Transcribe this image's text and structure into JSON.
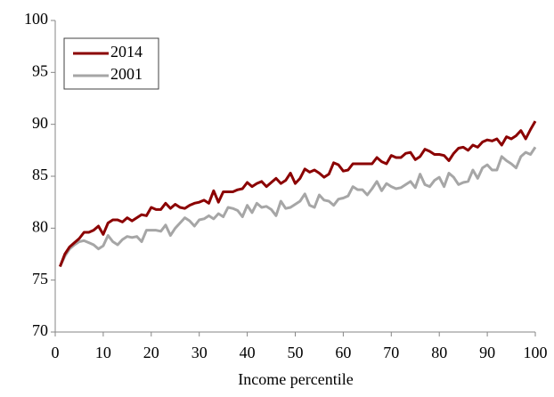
{
  "chart_data": {
    "type": "line",
    "xlabel": "Income percentile",
    "x": [
      1,
      2,
      3,
      4,
      5,
      6,
      7,
      8,
      9,
      10,
      11,
      12,
      13,
      14,
      15,
      16,
      17,
      18,
      19,
      20,
      21,
      22,
      23,
      24,
      25,
      26,
      27,
      28,
      29,
      30,
      31,
      32,
      33,
      34,
      35,
      36,
      37,
      38,
      39,
      40,
      41,
      42,
      43,
      44,
      45,
      46,
      47,
      48,
      49,
      50,
      51,
      52,
      53,
      54,
      55,
      56,
      57,
      58,
      59,
      60,
      61,
      62,
      63,
      64,
      65,
      66,
      67,
      68,
      69,
      70,
      71,
      72,
      73,
      74,
      75,
      76,
      77,
      78,
      79,
      80,
      81,
      82,
      83,
      84,
      85,
      86,
      87,
      88,
      89,
      90,
      91,
      92,
      93,
      94,
      95,
      96,
      97,
      98,
      99,
      100
    ],
    "series": [
      {
        "name": "2014",
        "color": "#8b0000",
        "values": [
          76.3,
          77.5,
          78.2,
          78.6,
          79.0,
          79.6,
          79.6,
          79.8,
          80.2,
          79.4,
          80.5,
          80.8,
          80.8,
          80.6,
          81.0,
          80.7,
          81.0,
          81.3,
          81.2,
          82.0,
          81.8,
          81.8,
          82.4,
          81.9,
          82.3,
          82.0,
          81.9,
          82.2,
          82.4,
          82.5,
          82.7,
          82.4,
          83.6,
          82.5,
          83.5,
          83.5,
          83.5,
          83.7,
          83.8,
          84.4,
          84.0,
          84.3,
          84.5,
          84.0,
          84.4,
          84.8,
          84.3,
          84.6,
          85.3,
          84.3,
          84.8,
          85.7,
          85.4,
          85.6,
          85.3,
          84.9,
          85.2,
          86.3,
          86.1,
          85.5,
          85.6,
          86.2,
          86.2,
          86.2,
          86.2,
          86.2,
          86.8,
          86.4,
          86.2,
          87.0,
          86.8,
          86.8,
          87.2,
          87.3,
          86.6,
          86.9,
          87.6,
          87.4,
          87.1,
          87.1,
          87.0,
          86.5,
          87.2,
          87.7,
          87.8,
          87.5,
          88.0,
          87.8,
          88.3,
          88.5,
          88.4,
          88.6,
          88.0,
          88.8,
          88.6,
          88.9,
          89.4,
          88.6,
          89.5,
          90.3
        ]
      },
      {
        "name": "2001",
        "color": "#a6a6a6",
        "values": [
          76.3,
          77.3,
          78.0,
          78.4,
          78.7,
          78.8,
          78.6,
          78.4,
          78.0,
          78.3,
          79.3,
          78.7,
          78.4,
          78.9,
          79.2,
          79.1,
          79.2,
          78.7,
          79.8,
          79.8,
          79.8,
          79.7,
          80.3,
          79.3,
          80.0,
          80.5,
          81.0,
          80.7,
          80.2,
          80.8,
          80.9,
          81.2,
          80.9,
          81.4,
          81.1,
          82.0,
          81.9,
          81.7,
          81.1,
          82.2,
          81.5,
          82.4,
          82.0,
          82.1,
          81.8,
          81.2,
          82.6,
          81.9,
          82.0,
          82.3,
          82.6,
          83.3,
          82.2,
          82.0,
          83.2,
          82.7,
          82.6,
          82.2,
          82.8,
          82.9,
          83.1,
          84.0,
          83.7,
          83.7,
          83.2,
          83.8,
          84.5,
          83.6,
          84.3,
          84.0,
          83.8,
          83.9,
          84.2,
          84.5,
          83.9,
          85.2,
          84.2,
          84.0,
          84.6,
          84.9,
          84.0,
          85.3,
          84.9,
          84.2,
          84.4,
          84.5,
          85.6,
          84.8,
          85.8,
          86.1,
          85.6,
          85.6,
          86.9,
          86.5,
          86.2,
          85.8,
          86.9,
          87.3,
          87.1,
          87.8
        ]
      }
    ],
    "xlim": [
      0,
      100
    ],
    "xticks": [
      0,
      10,
      20,
      30,
      40,
      50,
      60,
      70,
      80,
      90,
      100
    ],
    "ylim": [
      70,
      100
    ],
    "yticks": [
      70,
      75,
      80,
      85,
      90,
      95,
      100
    ],
    "grid": false,
    "legend": "upper left"
  }
}
